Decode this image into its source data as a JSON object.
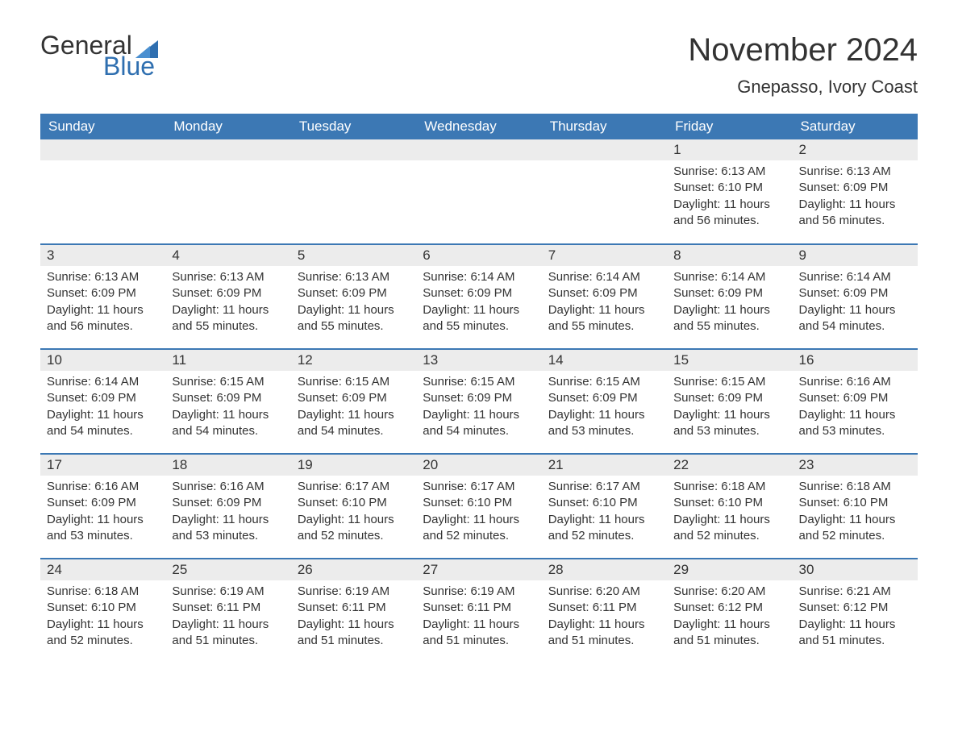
{
  "logo": {
    "word1": "General",
    "word2": "Blue",
    "flag_color": "#2f6fb0",
    "word1_color": "#333333",
    "word2_color": "#2f6fb0"
  },
  "title": "November 2024",
  "location": "Gnepasso, Ivory Coast",
  "colors": {
    "header_bg": "#3c78b4",
    "header_text": "#ffffff",
    "daynum_bg": "#ececec",
    "text": "#333333",
    "border": "#3c78b4",
    "background": "#ffffff"
  },
  "typography": {
    "title_fontsize": 40,
    "location_fontsize": 22,
    "dayheader_fontsize": 17,
    "daynum_fontsize": 17,
    "body_fontsize": 15,
    "font_family": "Arial"
  },
  "day_headers": [
    "Sunday",
    "Monday",
    "Tuesday",
    "Wednesday",
    "Thursday",
    "Friday",
    "Saturday"
  ],
  "weeks": [
    [
      null,
      null,
      null,
      null,
      null,
      {
        "num": "1",
        "sunrise": "Sunrise: 6:13 AM",
        "sunset": "Sunset: 6:10 PM",
        "daylight": "Daylight: 11 hours and 56 minutes."
      },
      {
        "num": "2",
        "sunrise": "Sunrise: 6:13 AM",
        "sunset": "Sunset: 6:09 PM",
        "daylight": "Daylight: 11 hours and 56 minutes."
      }
    ],
    [
      {
        "num": "3",
        "sunrise": "Sunrise: 6:13 AM",
        "sunset": "Sunset: 6:09 PM",
        "daylight": "Daylight: 11 hours and 56 minutes."
      },
      {
        "num": "4",
        "sunrise": "Sunrise: 6:13 AM",
        "sunset": "Sunset: 6:09 PM",
        "daylight": "Daylight: 11 hours and 55 minutes."
      },
      {
        "num": "5",
        "sunrise": "Sunrise: 6:13 AM",
        "sunset": "Sunset: 6:09 PM",
        "daylight": "Daylight: 11 hours and 55 minutes."
      },
      {
        "num": "6",
        "sunrise": "Sunrise: 6:14 AM",
        "sunset": "Sunset: 6:09 PM",
        "daylight": "Daylight: 11 hours and 55 minutes."
      },
      {
        "num": "7",
        "sunrise": "Sunrise: 6:14 AM",
        "sunset": "Sunset: 6:09 PM",
        "daylight": "Daylight: 11 hours and 55 minutes."
      },
      {
        "num": "8",
        "sunrise": "Sunrise: 6:14 AM",
        "sunset": "Sunset: 6:09 PM",
        "daylight": "Daylight: 11 hours and 55 minutes."
      },
      {
        "num": "9",
        "sunrise": "Sunrise: 6:14 AM",
        "sunset": "Sunset: 6:09 PM",
        "daylight": "Daylight: 11 hours and 54 minutes."
      }
    ],
    [
      {
        "num": "10",
        "sunrise": "Sunrise: 6:14 AM",
        "sunset": "Sunset: 6:09 PM",
        "daylight": "Daylight: 11 hours and 54 minutes."
      },
      {
        "num": "11",
        "sunrise": "Sunrise: 6:15 AM",
        "sunset": "Sunset: 6:09 PM",
        "daylight": "Daylight: 11 hours and 54 minutes."
      },
      {
        "num": "12",
        "sunrise": "Sunrise: 6:15 AM",
        "sunset": "Sunset: 6:09 PM",
        "daylight": "Daylight: 11 hours and 54 minutes."
      },
      {
        "num": "13",
        "sunrise": "Sunrise: 6:15 AM",
        "sunset": "Sunset: 6:09 PM",
        "daylight": "Daylight: 11 hours and 54 minutes."
      },
      {
        "num": "14",
        "sunrise": "Sunrise: 6:15 AM",
        "sunset": "Sunset: 6:09 PM",
        "daylight": "Daylight: 11 hours and 53 minutes."
      },
      {
        "num": "15",
        "sunrise": "Sunrise: 6:15 AM",
        "sunset": "Sunset: 6:09 PM",
        "daylight": "Daylight: 11 hours and 53 minutes."
      },
      {
        "num": "16",
        "sunrise": "Sunrise: 6:16 AM",
        "sunset": "Sunset: 6:09 PM",
        "daylight": "Daylight: 11 hours and 53 minutes."
      }
    ],
    [
      {
        "num": "17",
        "sunrise": "Sunrise: 6:16 AM",
        "sunset": "Sunset: 6:09 PM",
        "daylight": "Daylight: 11 hours and 53 minutes."
      },
      {
        "num": "18",
        "sunrise": "Sunrise: 6:16 AM",
        "sunset": "Sunset: 6:09 PM",
        "daylight": "Daylight: 11 hours and 53 minutes."
      },
      {
        "num": "19",
        "sunrise": "Sunrise: 6:17 AM",
        "sunset": "Sunset: 6:10 PM",
        "daylight": "Daylight: 11 hours and 52 minutes."
      },
      {
        "num": "20",
        "sunrise": "Sunrise: 6:17 AM",
        "sunset": "Sunset: 6:10 PM",
        "daylight": "Daylight: 11 hours and 52 minutes."
      },
      {
        "num": "21",
        "sunrise": "Sunrise: 6:17 AM",
        "sunset": "Sunset: 6:10 PM",
        "daylight": "Daylight: 11 hours and 52 minutes."
      },
      {
        "num": "22",
        "sunrise": "Sunrise: 6:18 AM",
        "sunset": "Sunset: 6:10 PM",
        "daylight": "Daylight: 11 hours and 52 minutes."
      },
      {
        "num": "23",
        "sunrise": "Sunrise: 6:18 AM",
        "sunset": "Sunset: 6:10 PM",
        "daylight": "Daylight: 11 hours and 52 minutes."
      }
    ],
    [
      {
        "num": "24",
        "sunrise": "Sunrise: 6:18 AM",
        "sunset": "Sunset: 6:10 PM",
        "daylight": "Daylight: 11 hours and 52 minutes."
      },
      {
        "num": "25",
        "sunrise": "Sunrise: 6:19 AM",
        "sunset": "Sunset: 6:11 PM",
        "daylight": "Daylight: 11 hours and 51 minutes."
      },
      {
        "num": "26",
        "sunrise": "Sunrise: 6:19 AM",
        "sunset": "Sunset: 6:11 PM",
        "daylight": "Daylight: 11 hours and 51 minutes."
      },
      {
        "num": "27",
        "sunrise": "Sunrise: 6:19 AM",
        "sunset": "Sunset: 6:11 PM",
        "daylight": "Daylight: 11 hours and 51 minutes."
      },
      {
        "num": "28",
        "sunrise": "Sunrise: 6:20 AM",
        "sunset": "Sunset: 6:11 PM",
        "daylight": "Daylight: 11 hours and 51 minutes."
      },
      {
        "num": "29",
        "sunrise": "Sunrise: 6:20 AM",
        "sunset": "Sunset: 6:12 PM",
        "daylight": "Daylight: 11 hours and 51 minutes."
      },
      {
        "num": "30",
        "sunrise": "Sunrise: 6:21 AM",
        "sunset": "Sunset: 6:12 PM",
        "daylight": "Daylight: 11 hours and 51 minutes."
      }
    ]
  ]
}
